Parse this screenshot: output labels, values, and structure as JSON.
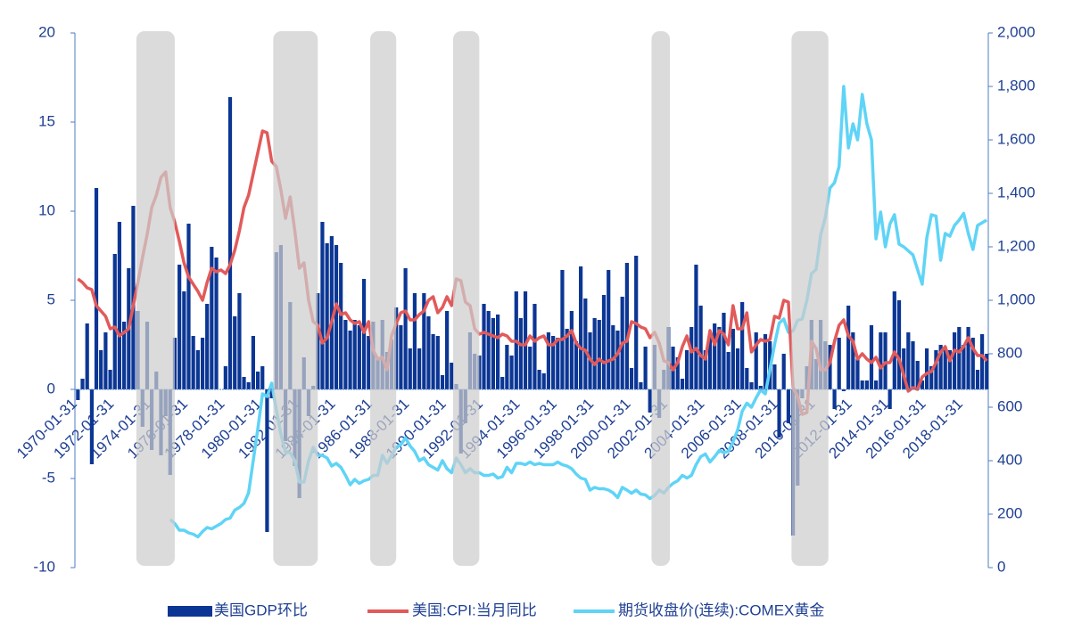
{
  "chart_data": {
    "type": "bar-line",
    "xlim": [
      "1970-01-31",
      "2019-07-31"
    ],
    "xticks": [
      "1970-01-31",
      "1972-01-31",
      "1974-01-31",
      "1976-01-31",
      "1978-01-31",
      "1980-01-31",
      "1982-01-31",
      "1984-01-31",
      "1986-01-31",
      "1988-01-31",
      "1990-01-31",
      "1992-01-31",
      "1994-01-31",
      "1996-01-31",
      "1998-01-31",
      "2000-01-31",
      "2002-01-31",
      "2004-01-31",
      "2006-01-31",
      "2008-01-31",
      "2010-01-31",
      "2012-01-31",
      "2014-01-31",
      "2016-01-31",
      "2018-01-31"
    ],
    "ylim": [
      -10,
      20
    ],
    "yticks": [
      -10,
      -5,
      0,
      5,
      10,
      15,
      20
    ],
    "y2lim": [
      0,
      2000
    ],
    "y2ticks": [
      0,
      200,
      400,
      600,
      800,
      {
        "value": 1000,
        "label": "1,000"
      },
      {
        "value": 1200,
        "label": "1,200"
      },
      {
        "value": 1400,
        "label": "1,400"
      },
      {
        "value": 1600,
        "label": "1,600"
      },
      {
        "value": 1800,
        "label": "1,800"
      },
      {
        "value": 2000,
        "label": "2,000"
      }
    ],
    "shaded_periods": [
      [
        "1973-05-31",
        "1975-06-30"
      ],
      [
        "1980-10-31",
        "1983-03-31"
      ],
      [
        "1986-01-31",
        "1987-06-30"
      ],
      [
        "1990-07-31",
        "1991-12-31"
      ],
      [
        "2001-04-30",
        "2002-04-30"
      ],
      [
        "2008-11-30",
        "2010-11-30"
      ]
    ],
    "x": [
      "1970-03-31",
      "1970-06-30",
      "1970-09-30",
      "1970-12-31",
      "1971-03-31",
      "1971-06-30",
      "1971-09-30",
      "1971-12-31",
      "1972-03-31",
      "1972-06-30",
      "1972-09-30",
      "1972-12-31",
      "1973-03-31",
      "1973-06-30",
      "1973-09-30",
      "1973-12-31",
      "1974-03-31",
      "1974-06-30",
      "1974-09-30",
      "1974-12-31",
      "1975-03-31",
      "1975-06-30",
      "1975-09-30",
      "1975-12-31",
      "1976-03-31",
      "1976-06-30",
      "1976-09-30",
      "1976-12-31",
      "1977-03-31",
      "1977-06-30",
      "1977-09-30",
      "1977-12-31",
      "1978-03-31",
      "1978-06-30",
      "1978-09-30",
      "1978-12-31",
      "1979-03-31",
      "1979-06-30",
      "1979-09-30",
      "1979-12-31",
      "1980-03-31",
      "1980-06-30",
      "1980-09-30",
      "1980-12-31",
      "1981-03-31",
      "1981-06-30",
      "1981-09-30",
      "1981-12-31",
      "1982-03-31",
      "1982-06-30",
      "1982-09-30",
      "1982-12-31",
      "1983-03-31",
      "1983-06-30",
      "1983-09-30",
      "1983-12-31",
      "1984-03-31",
      "1984-06-30",
      "1984-09-30",
      "1984-12-31",
      "1985-03-31",
      "1985-06-30",
      "1985-09-30",
      "1985-12-31",
      "1986-03-31",
      "1986-06-30",
      "1986-09-30",
      "1986-12-31",
      "1987-03-31",
      "1987-06-30",
      "1987-09-30",
      "1987-12-31",
      "1988-03-31",
      "1988-06-30",
      "1988-09-30",
      "1988-12-31",
      "1989-03-31",
      "1989-06-30",
      "1989-09-30",
      "1989-12-31",
      "1990-03-31",
      "1990-06-30",
      "1990-09-30",
      "1990-12-31",
      "1991-03-31",
      "1991-06-30",
      "1991-09-30",
      "1991-12-31",
      "1992-03-31",
      "1992-06-30",
      "1992-09-30",
      "1992-12-31",
      "1993-03-31",
      "1993-06-30",
      "1993-09-30",
      "1993-12-31",
      "1994-03-31",
      "1994-06-30",
      "1994-09-30",
      "1994-12-31",
      "1995-03-31",
      "1995-06-30",
      "1995-09-30",
      "1995-12-31",
      "1996-03-31",
      "1996-06-30",
      "1996-09-30",
      "1996-12-31",
      "1997-03-31",
      "1997-06-30",
      "1997-09-30",
      "1997-12-31",
      "1998-03-31",
      "1998-06-30",
      "1998-09-30",
      "1998-12-31",
      "1999-03-31",
      "1999-06-30",
      "1999-09-30",
      "1999-12-31",
      "2000-03-31",
      "2000-06-30",
      "2000-09-30",
      "2000-12-31",
      "2001-03-31",
      "2001-06-30",
      "2001-09-30",
      "2001-12-31",
      "2002-03-31",
      "2002-06-30",
      "2002-09-30",
      "2002-12-31",
      "2003-03-31",
      "2003-06-30",
      "2003-09-30",
      "2003-12-31",
      "2004-03-31",
      "2004-06-30",
      "2004-09-30",
      "2004-12-31",
      "2005-03-31",
      "2005-06-30",
      "2005-09-30",
      "2005-12-31",
      "2006-03-31",
      "2006-06-30",
      "2006-09-30",
      "2006-12-31",
      "2007-03-31",
      "2007-06-30",
      "2007-09-30",
      "2007-12-31",
      "2008-03-31",
      "2008-06-30",
      "2008-09-30",
      "2008-12-31",
      "2009-03-31",
      "2009-06-30",
      "2009-09-30",
      "2009-12-31",
      "2010-03-31",
      "2010-06-30",
      "2010-09-30",
      "2010-12-31",
      "2011-03-31",
      "2011-06-30",
      "2011-09-30",
      "2011-12-31",
      "2012-03-31",
      "2012-06-30",
      "2012-09-30",
      "2012-12-31",
      "2013-03-31",
      "2013-06-30",
      "2013-09-30",
      "2013-12-31",
      "2014-03-31",
      "2014-06-30",
      "2014-09-30",
      "2014-12-31",
      "2015-03-31",
      "2015-06-30",
      "2015-09-30",
      "2015-12-31",
      "2016-03-31",
      "2016-06-30",
      "2016-09-30",
      "2016-12-31",
      "2017-03-31",
      "2017-06-30",
      "2017-09-30",
      "2017-12-31",
      "2018-03-31",
      "2018-06-30",
      "2018-09-30",
      "2018-12-31",
      "2019-03-31",
      "2019-06-30"
    ],
    "series": [
      {
        "name": "美国GDP环比",
        "type": "bar",
        "color": "#0b3694",
        "values": [
          -0.6,
          0.6,
          3.7,
          -4.2,
          11.3,
          2.2,
          3.2,
          1.1,
          7.6,
          9.4,
          3.8,
          6.8,
          10.3,
          4.4,
          -2.1,
          3.8,
          -3.4,
          1.0,
          -3.7,
          -1.5,
          -4.8,
          2.9,
          7.0,
          5.5,
          9.3,
          3.0,
          2.2,
          2.9,
          4.8,
          8.0,
          7.4,
          0.0,
          1.3,
          16.4,
          4.1,
          5.4,
          0.7,
          0.4,
          3.0,
          1.0,
          1.3,
          -8.0,
          -0.5,
          7.7,
          8.1,
          -2.9,
          4.9,
          -4.3,
          -6.1,
          1.8,
          -1.5,
          0.2,
          5.4,
          9.4,
          8.2,
          8.6,
          8.1,
          7.1,
          3.9,
          3.3,
          3.9,
          3.6,
          6.2,
          3.0,
          3.8,
          1.8,
          3.9,
          2.1,
          2.8,
          4.6,
          3.6,
          6.8,
          2.3,
          5.4,
          2.3,
          5.4,
          4.1,
          3.1,
          3.0,
          0.8,
          4.4,
          1.5,
          0.3,
          -3.6,
          -1.9,
          3.2,
          2.0,
          1.9,
          4.8,
          4.4,
          4.0,
          4.2,
          0.7,
          2.5,
          1.9,
          5.5,
          4.0,
          5.5,
          2.4,
          4.8,
          1.1,
          0.9,
          3.2,
          3.0,
          2.9,
          6.7,
          3.4,
          4.4,
          2.7,
          6.9,
          5.1,
          3.2,
          4.0,
          3.9,
          5.3,
          6.7,
          3.6,
          3.3,
          5.2,
          7.1,
          1.2,
          7.5,
          0.4,
          2.4,
          -1.3,
          2.5,
          -1.6,
          1.1,
          3.5,
          2.4,
          1.8,
          0.6,
          2.2,
          3.5,
          7.0,
          4.7,
          2.2,
          3.0,
          3.7,
          3.5,
          4.3,
          2.1,
          3.4,
          2.3,
          4.9,
          1.2,
          0.4,
          3.2,
          0.2,
          3.1,
          2.7,
          1.4,
          -2.7,
          2.0,
          -1.9,
          -8.2,
          -5.4,
          -0.5,
          1.3,
          3.9,
          1.7,
          3.9,
          2.7,
          2.5,
          -1.1,
          2.9,
          -0.1,
          4.7,
          3.2,
          1.7,
          0.5,
          0.5,
          3.6,
          0.5,
          3.2,
          3.2,
          -1.1,
          5.5,
          5.0,
          2.3,
          3.2,
          2.7,
          1.6,
          0.5,
          2.3,
          1.3,
          2.2,
          2.5,
          2.3,
          2.2,
          3.2,
          3.5,
          2.5,
          3.5,
          2.9,
          1.1,
          3.1,
          2.0
        ]
      },
      {
        "name": "美国:CPI:当月同比",
        "type": "line",
        "color": "#e25a5a",
        "values": [
          6.2,
          6.0,
          5.7,
          5.6,
          4.7,
          4.4,
          4.1,
          3.4,
          3.5,
          3.0,
          3.2,
          3.4,
          4.7,
          6.0,
          7.4,
          8.7,
          10.2,
          10.9,
          11.9,
          12.2,
          10.2,
          9.4,
          8.3,
          7.1,
          6.3,
          5.9,
          5.5,
          5.0,
          6.0,
          6.8,
          6.6,
          6.7,
          6.5,
          7.0,
          7.8,
          8.9,
          10.2,
          10.9,
          12.1,
          13.3,
          14.5,
          14.4,
          12.8,
          12.5,
          11.2,
          9.6,
          10.8,
          8.9,
          6.8,
          7.1,
          5.0,
          3.8,
          3.6,
          2.6,
          2.9,
          3.8,
          4.8,
          4.2,
          4.3,
          3.9,
          3.7,
          3.8,
          3.2,
          3.8,
          2.2,
          1.7,
          1.8,
          1.1,
          3.0,
          3.7,
          4.3,
          4.4,
          3.9,
          3.9,
          4.2,
          4.4,
          5.0,
          5.2,
          4.3,
          4.6,
          5.2,
          4.7,
          6.2,
          6.1,
          4.9,
          4.7,
          3.4,
          3.1,
          3.2,
          3.1,
          3.0,
          2.9,
          3.1,
          3.0,
          2.7,
          2.7,
          2.5,
          2.5,
          3.0,
          2.7,
          2.9,
          3.0,
          2.5,
          2.5,
          2.8,
          2.8,
          3.0,
          3.3,
          2.6,
          2.3,
          2.2,
          1.7,
          1.4,
          1.7,
          1.5,
          1.6,
          1.7,
          2.0,
          2.6,
          2.7,
          3.8,
          3.7,
          3.5,
          3.4,
          2.9,
          3.2,
          2.6,
          1.6,
          1.5,
          1.1,
          1.5,
          2.4,
          3.0,
          2.1,
          2.3,
          1.9,
          1.7,
          3.3,
          2.5,
          3.3,
          3.1,
          2.5,
          4.7,
          3.4,
          3.4,
          4.3,
          2.1,
          2.5,
          2.8,
          2.7,
          2.8,
          4.1,
          4.0,
          5.0,
          4.9,
          0.1,
          -0.4,
          -1.4,
          -1.3,
          2.7,
          2.3,
          1.1,
          1.1,
          1.5,
          2.7,
          3.6,
          3.9,
          3.0,
          2.7,
          1.7,
          2.0,
          1.7,
          1.5,
          1.8,
          1.2,
          1.5,
          1.5,
          2.1,
          1.7,
          0.8,
          -0.1,
          0.1,
          0.0,
          0.7,
          0.9,
          1.0,
          1.5,
          2.1,
          2.4,
          1.6,
          2.2,
          2.1,
          2.4,
          2.9,
          2.3,
          1.9,
          1.9,
          1.6
        ]
      },
      {
        "name": "期货收盘价(连续):COMEX黄金",
        "type": "line",
        "axis": "y2",
        "color": "#5fd4f6",
        "values": [
          null,
          null,
          null,
          null,
          null,
          null,
          null,
          null,
          null,
          null,
          null,
          null,
          null,
          null,
          null,
          null,
          null,
          null,
          null,
          null,
          180,
          165,
          140,
          140,
          130,
          125,
          115,
          135,
          150,
          145,
          155,
          165,
          180,
          185,
          215,
          225,
          240,
          280,
          400,
          520,
          650,
          640,
          690,
          590,
          500,
          430,
          430,
          400,
          320,
          320,
          400,
          450,
          420,
          420,
          410,
          380,
          390,
          375,
          345,
          310,
          330,
          315,
          325,
          330,
          345,
          345,
          420,
          390,
          420,
          450,
          460,
          485,
          455,
          435,
          400,
          410,
          385,
          375,
          365,
          400,
          370,
          355,
          410,
          385,
          355,
          370,
          355,
          355,
          345,
          345,
          350,
          335,
          340,
          375,
          355,
          390,
          390,
          385,
          395,
          385,
          390,
          385,
          385,
          385,
          395,
          385,
          380,
          370,
          350,
          335,
          330,
          290,
          300,
          295,
          295,
          290,
          280,
          262,
          300,
          290,
          278,
          290,
          275,
          272,
          258,
          270,
          290,
          279,
          300,
          315,
          325,
          345,
          335,
          345,
          385,
          415,
          425,
          395,
          415,
          438,
          430,
          435,
          470,
          515,
          585,
          615,
          600,
          635,
          665,
          650,
          740,
          835,
          915,
          930,
          880,
          885,
          925,
          930,
          1000,
          1100,
          1115,
          1245,
          1310,
          1420,
          1440,
          1500,
          1800,
          1570,
          1660,
          1600,
          1770,
          1660,
          1600,
          1230,
          1330,
          1200,
          1285,
          1320,
          1210,
          1200,
          1185,
          1170,
          1115,
          1060,
          1235,
          1320,
          1315,
          1150,
          1250,
          1240,
          1280,
          1300,
          1325,
          1250,
          1190,
          1280,
          1290,
          1300
        ]
      }
    ]
  }
}
